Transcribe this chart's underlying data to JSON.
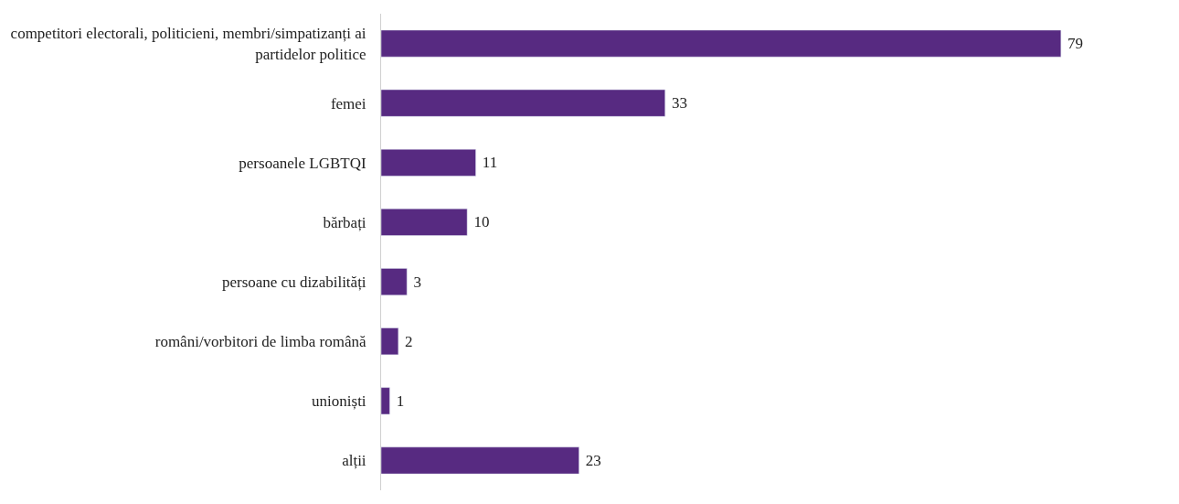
{
  "chart_data": {
    "type": "bar",
    "orientation": "horizontal",
    "data_labels": true,
    "categories": [
      "competitori electorali, politicieni, membri/simpatizanți ai partidelor politice",
      "femei",
      "persoanele LGBTQI",
      "bărbați",
      "persoane cu dizabilități",
      "români/vorbitori de limba română",
      "unioniști",
      "alții"
    ],
    "values": [
      79,
      33,
      11,
      10,
      3,
      2,
      1,
      23
    ],
    "color": "#572a81",
    "tick_labels": "y"
  }
}
